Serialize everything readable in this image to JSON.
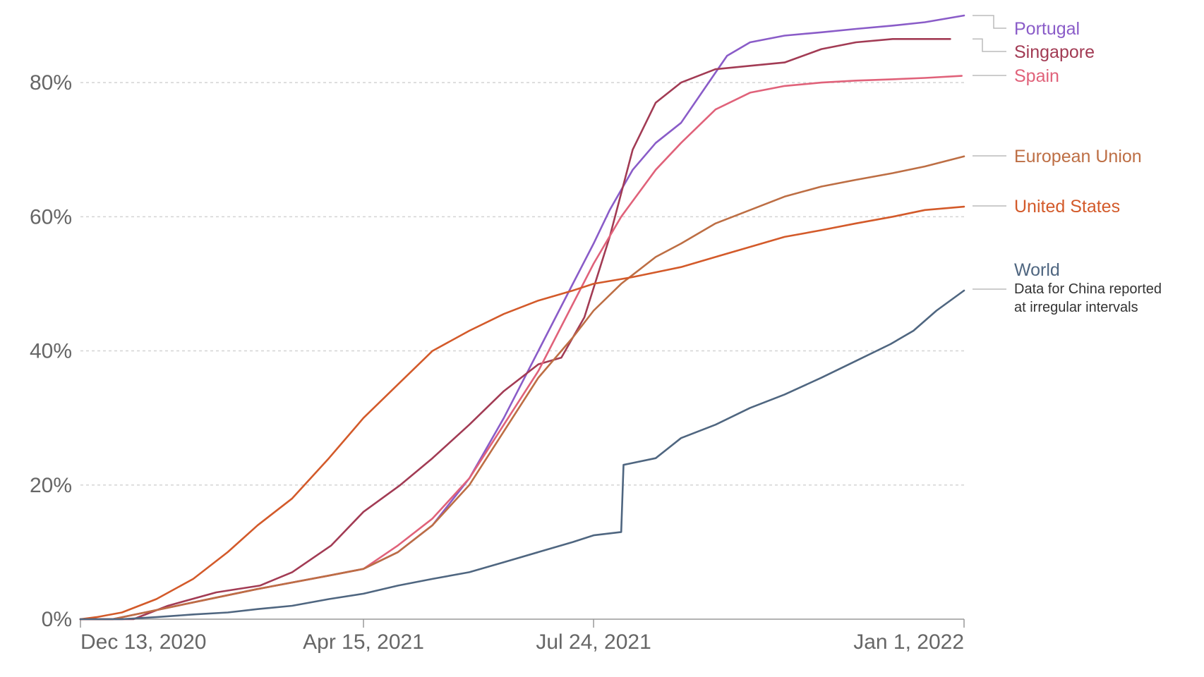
{
  "chart_data": {
    "type": "line",
    "title": "",
    "xlabel": "",
    "ylabel": "",
    "x_range": [
      "2020-12-13",
      "2022-01-01"
    ],
    "ylim": [
      0,
      90
    ],
    "grid": "horizontal dashed",
    "legend": "right, direct labels at line ends",
    "x_ticks": [
      {
        "date": "2020-12-13",
        "label": "Dec 13, 2020"
      },
      {
        "date": "2021-04-15",
        "label": "Apr 15, 2021"
      },
      {
        "date": "2021-07-24",
        "label": "Jul 24, 2021"
      },
      {
        "date": "2022-01-01",
        "label": "Jan 1, 2022"
      }
    ],
    "y_ticks": [
      {
        "value": 0,
        "label": "0%"
      },
      {
        "value": 20,
        "label": "20%"
      },
      {
        "value": 40,
        "label": "40%"
      },
      {
        "value": 60,
        "label": "60%"
      },
      {
        "value": 80,
        "label": "80%"
      }
    ],
    "series": [
      {
        "name": "Portugal",
        "color": "#8a5cc8",
        "points": [
          [
            "2020-12-13",
            0
          ],
          [
            "2020-12-27",
            0
          ],
          [
            "2021-01-10",
            1
          ],
          [
            "2021-01-31",
            2.5
          ],
          [
            "2021-02-28",
            4.5
          ],
          [
            "2021-03-31",
            6.5
          ],
          [
            "2021-04-15",
            7.5
          ],
          [
            "2021-04-30",
            10
          ],
          [
            "2021-05-15",
            14
          ],
          [
            "2021-05-31",
            21
          ],
          [
            "2021-06-15",
            30
          ],
          [
            "2021-06-30",
            40
          ],
          [
            "2021-07-15",
            50
          ],
          [
            "2021-07-24",
            56
          ],
          [
            "2021-07-31",
            61
          ],
          [
            "2021-08-10",
            67
          ],
          [
            "2021-08-20",
            71
          ],
          [
            "2021-08-31",
            74
          ],
          [
            "2021-09-10",
            79
          ],
          [
            "2021-09-20",
            84
          ],
          [
            "2021-09-30",
            86
          ],
          [
            "2021-10-15",
            87
          ],
          [
            "2021-10-31",
            87.5
          ],
          [
            "2021-11-15",
            88
          ],
          [
            "2021-12-01",
            88.5
          ],
          [
            "2021-12-15",
            89
          ],
          [
            "2022-01-01",
            90
          ]
        ]
      },
      {
        "name": "Singapore",
        "color": "#a23b54",
        "points": [
          [
            "2020-12-13",
            0
          ],
          [
            "2021-01-05",
            0
          ],
          [
            "2021-01-20",
            2
          ],
          [
            "2021-02-10",
            4
          ],
          [
            "2021-03-01",
            5
          ],
          [
            "2021-03-15",
            7
          ],
          [
            "2021-04-01",
            11
          ],
          [
            "2021-04-15",
            16
          ],
          [
            "2021-05-01",
            20
          ],
          [
            "2021-05-15",
            24
          ],
          [
            "2021-05-31",
            29
          ],
          [
            "2021-06-15",
            34
          ],
          [
            "2021-06-30",
            38
          ],
          [
            "2021-07-10",
            39
          ],
          [
            "2021-07-20",
            45
          ],
          [
            "2021-07-31",
            57
          ],
          [
            "2021-08-10",
            70
          ],
          [
            "2021-08-20",
            77
          ],
          [
            "2021-08-31",
            80
          ],
          [
            "2021-09-15",
            82
          ],
          [
            "2021-09-30",
            82.5
          ],
          [
            "2021-10-15",
            83
          ],
          [
            "2021-10-31",
            85
          ],
          [
            "2021-11-15",
            86
          ],
          [
            "2021-12-01",
            86.5
          ],
          [
            "2021-12-26",
            86.5
          ]
        ]
      },
      {
        "name": "Spain",
        "color": "#e0627a",
        "points": [
          [
            "2020-12-13",
            0
          ],
          [
            "2020-12-27",
            0
          ],
          [
            "2021-01-10",
            1
          ],
          [
            "2021-01-31",
            2.5
          ],
          [
            "2021-02-28",
            4.5
          ],
          [
            "2021-03-31",
            6.5
          ],
          [
            "2021-04-15",
            7.5
          ],
          [
            "2021-04-30",
            11
          ],
          [
            "2021-05-15",
            15
          ],
          [
            "2021-05-31",
            21
          ],
          [
            "2021-06-15",
            29
          ],
          [
            "2021-06-30",
            37
          ],
          [
            "2021-07-15",
            47
          ],
          [
            "2021-07-24",
            53
          ],
          [
            "2021-08-05",
            60
          ],
          [
            "2021-08-20",
            67
          ],
          [
            "2021-08-31",
            71
          ],
          [
            "2021-09-15",
            76
          ],
          [
            "2021-09-30",
            78.5
          ],
          [
            "2021-10-15",
            79.5
          ],
          [
            "2021-10-31",
            80
          ],
          [
            "2021-11-15",
            80.3
          ],
          [
            "2021-12-01",
            80.5
          ],
          [
            "2021-12-15",
            80.7
          ],
          [
            "2021-12-31",
            81
          ]
        ]
      },
      {
        "name": "European Union",
        "color": "#bd6e44",
        "points": [
          [
            "2020-12-13",
            0
          ],
          [
            "2020-12-27",
            0
          ],
          [
            "2021-01-10",
            1
          ],
          [
            "2021-01-31",
            2.5
          ],
          [
            "2021-02-28",
            4.5
          ],
          [
            "2021-03-31",
            6.5
          ],
          [
            "2021-04-15",
            7.5
          ],
          [
            "2021-04-30",
            10
          ],
          [
            "2021-05-15",
            14
          ],
          [
            "2021-05-31",
            20
          ],
          [
            "2021-06-15",
            28
          ],
          [
            "2021-06-30",
            36
          ],
          [
            "2021-07-15",
            42
          ],
          [
            "2021-07-24",
            46
          ],
          [
            "2021-08-05",
            50
          ],
          [
            "2021-08-20",
            54
          ],
          [
            "2021-08-31",
            56
          ],
          [
            "2021-09-15",
            59
          ],
          [
            "2021-09-30",
            61
          ],
          [
            "2021-10-15",
            63
          ],
          [
            "2021-10-31",
            64.5
          ],
          [
            "2021-11-15",
            65.5
          ],
          [
            "2021-12-01",
            66.5
          ],
          [
            "2021-12-15",
            67.5
          ],
          [
            "2022-01-01",
            69
          ]
        ]
      },
      {
        "name": "United States",
        "color": "#d35a2a",
        "points": [
          [
            "2020-12-13",
            0
          ],
          [
            "2020-12-20",
            0.3
          ],
          [
            "2020-12-31",
            1
          ],
          [
            "2021-01-15",
            3
          ],
          [
            "2021-01-31",
            6
          ],
          [
            "2021-02-15",
            10
          ],
          [
            "2021-02-28",
            14
          ],
          [
            "2021-03-15",
            18
          ],
          [
            "2021-03-31",
            24
          ],
          [
            "2021-04-15",
            30
          ],
          [
            "2021-04-30",
            35
          ],
          [
            "2021-05-15",
            40
          ],
          [
            "2021-05-31",
            43
          ],
          [
            "2021-06-15",
            45.5
          ],
          [
            "2021-06-30",
            47.5
          ],
          [
            "2021-07-15",
            49
          ],
          [
            "2021-07-24",
            50
          ],
          [
            "2021-08-10",
            51
          ],
          [
            "2021-08-31",
            52.5
          ],
          [
            "2021-09-15",
            54
          ],
          [
            "2021-09-30",
            55.5
          ],
          [
            "2021-10-15",
            57
          ],
          [
            "2021-10-31",
            58
          ],
          [
            "2021-11-15",
            59
          ],
          [
            "2021-12-01",
            60
          ],
          [
            "2021-12-15",
            61
          ],
          [
            "2022-01-01",
            61.5
          ]
        ]
      },
      {
        "name": "World",
        "color": "#4f6680",
        "points": [
          [
            "2020-12-13",
            0
          ],
          [
            "2020-12-31",
            0
          ],
          [
            "2021-01-15",
            0.3
          ],
          [
            "2021-01-31",
            0.7
          ],
          [
            "2021-02-15",
            1
          ],
          [
            "2021-02-28",
            1.5
          ],
          [
            "2021-03-15",
            2
          ],
          [
            "2021-03-31",
            3
          ],
          [
            "2021-04-15",
            3.8
          ],
          [
            "2021-04-30",
            5
          ],
          [
            "2021-05-15",
            6
          ],
          [
            "2021-05-31",
            7
          ],
          [
            "2021-06-15",
            8.5
          ],
          [
            "2021-06-30",
            10
          ],
          [
            "2021-07-15",
            11.5
          ],
          [
            "2021-07-24",
            12.5
          ],
          [
            "2021-08-05",
            13
          ],
          [
            "2021-08-06",
            23
          ],
          [
            "2021-08-20",
            24
          ],
          [
            "2021-08-31",
            27
          ],
          [
            "2021-09-15",
            29
          ],
          [
            "2021-09-30",
            31.5
          ],
          [
            "2021-10-15",
            33.5
          ],
          [
            "2021-10-31",
            36
          ],
          [
            "2021-11-15",
            38.5
          ],
          [
            "2021-11-30",
            41
          ],
          [
            "2021-12-10",
            43
          ],
          [
            "2021-12-20",
            46
          ],
          [
            "2022-01-01",
            49
          ]
        ]
      }
    ],
    "labels": [
      {
        "text": "Portugal",
        "color": "#8a5cc8"
      },
      {
        "text": "Singapore",
        "color": "#a23b54"
      },
      {
        "text": "Spain",
        "color": "#e0627a"
      },
      {
        "text": "European Union",
        "color": "#bd6e44"
      },
      {
        "text": "United States",
        "color": "#d35a2a"
      },
      {
        "text": "World",
        "color": "#4f6680"
      }
    ],
    "annotation": [
      "Data for China reported",
      "at irregular intervals"
    ]
  }
}
